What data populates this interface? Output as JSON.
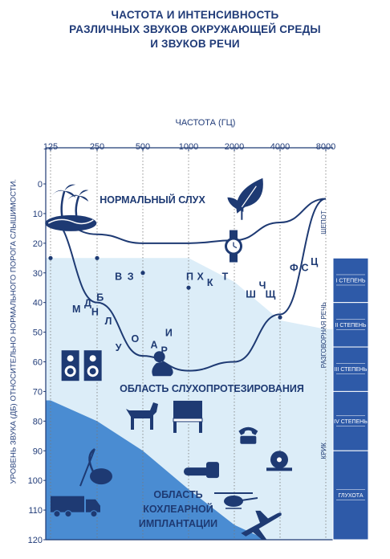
{
  "chart_data": {
    "type": "area",
    "title_lines": [
      "ЧАСТОТА И ИНТЕНСИВНОСТЬ",
      "РАЗЛИЧНЫХ ЗВУКОВ ОКРУЖАЮЩЕЙ СРЕДЫ",
      "И ЗВУКОВ РЕЧИ"
    ],
    "xlabel": "ЧАСТОТА (ГЦ)",
    "ylabel": "УРОВЕНЬ ЗВУКА (ДБ) ОТНОСИТЕЛЬНО НОРМАЛЬНОГО ПОРОГА СЛЫШИМОСТИ.",
    "x_ticks": [
      "125",
      "250",
      "500",
      "1000",
      "2000",
      "4000",
      "8000"
    ],
    "y_ticks": [
      0,
      10,
      20,
      30,
      40,
      50,
      60,
      70,
      80,
      90,
      100,
      110,
      120
    ],
    "ylim": [
      0,
      120
    ],
    "normal_hearing_threshold": [
      {
        "x": "125",
        "y": 25
      },
      {
        "x": "250",
        "y": 25
      },
      {
        "x": "500",
        "y": 25
      },
      {
        "x": "1000",
        "y": 25
      },
      {
        "x": "2000",
        "y": 33
      },
      {
        "x": "4000",
        "y": 46
      },
      {
        "x": "8000",
        "y": 49
      }
    ],
    "implant_boundary": [
      {
        "x": "125",
        "y": 73
      },
      {
        "x": "250",
        "y": 80
      },
      {
        "x": "500",
        "y": 90
      },
      {
        "x": "1000",
        "y": 103
      },
      {
        "x": "2000",
        "y": 115
      }
    ],
    "speech_banana_upper": [
      {
        "x": "125",
        "y": 12
      },
      {
        "x": "250",
        "y": 17
      },
      {
        "x": "500",
        "y": 20
      },
      {
        "x": "1000",
        "y": 20
      },
      {
        "x": "2000",
        "y": 19
      },
      {
        "x": "4000",
        "y": 13
      },
      {
        "x": "8000",
        "y": 5
      }
    ],
    "speech_banana_lower": [
      {
        "x": "8000",
        "y": 5
      },
      {
        "x": "4000",
        "y": 44
      },
      {
        "x": "2000",
        "y": 60
      },
      {
        "x": "1000",
        "y": 63
      },
      {
        "x": "500",
        "y": 58
      },
      {
        "x": "250",
        "y": 40
      },
      {
        "x": "125",
        "y": 12
      }
    ],
    "threshold_markers": [
      {
        "x": "125",
        "y": 25
      },
      {
        "x": "250",
        "y": 25
      },
      {
        "x": "500",
        "y": 30
      },
      {
        "x": "1000",
        "y": 35
      },
      {
        "x": "4000",
        "y": 45
      }
    ],
    "regions": [
      {
        "label": "НОРМАЛЬНЫЙ СЛУХ"
      },
      {
        "label": "ОБЛАСТЬ СЛУХОПРОТЕЗИРОВАНИЯ"
      },
      {
        "label_lines": [
          "ОБЛАСТЬ",
          "КОХЛЕАРНОЙ",
          "ИМПЛАНТАЦИИ"
        ]
      }
    ],
    "speech_sounds": [
      {
        "text": "В",
        "freq": 350,
        "db": 31
      },
      {
        "text": "З",
        "freq": 420,
        "db": 31
      },
      {
        "text": "М",
        "freq": 185,
        "db": 42
      },
      {
        "text": "Д",
        "freq": 220,
        "db": 40
      },
      {
        "text": "Б",
        "freq": 265,
        "db": 38
      },
      {
        "text": "Н",
        "freq": 245,
        "db": 43
      },
      {
        "text": "Л",
        "freq": 300,
        "db": 46
      },
      {
        "text": "У",
        "freq": 350,
        "db": 55
      },
      {
        "text": "О",
        "freq": 450,
        "db": 52
      },
      {
        "text": "А",
        "freq": 600,
        "db": 54
      },
      {
        "text": "Р",
        "freq": 700,
        "db": 56
      },
      {
        "text": "И",
        "freq": 750,
        "db": 50
      },
      {
        "text": "П",
        "freq": 1030,
        "db": 31
      },
      {
        "text": "Х",
        "freq": 1210,
        "db": 31
      },
      {
        "text": "К",
        "freq": 1400,
        "db": 33
      },
      {
        "text": "Т",
        "freq": 1760,
        "db": 31
      },
      {
        "text": "Ч",
        "freq": 3100,
        "db": 34
      },
      {
        "text": "Ш",
        "freq": 2600,
        "db": 37
      },
      {
        "text": "Щ",
        "freq": 3500,
        "db": 37
      },
      {
        "text": "Ф",
        "freq": 5000,
        "db": 28
      },
      {
        "text": "С",
        "freq": 5900,
        "db": 28
      },
      {
        "text": "Ц",
        "freq": 6800,
        "db": 26
      }
    ],
    "side_labels": [
      {
        "text": "ШЕПОТ",
        "db": 13
      },
      {
        "text": "РАЗГОВОРНАЯ РЕЧЬ",
        "db": 51
      },
      {
        "text": "КРИК",
        "db": 90
      }
    ],
    "hearing_loss_grades": [
      {
        "label": "I СТЕПЕНЬ",
        "from": 25,
        "to": 40
      },
      {
        "label": "II СТЕПЕНЬ",
        "from": 40,
        "to": 55
      },
      {
        "label": "III СТЕПЕНЬ",
        "from": 55,
        "to": 70
      },
      {
        "label": "IV СТЕПЕНЬ",
        "from": 70,
        "to": 90
      },
      {
        "label": "ГЛУХОТА",
        "from": 90,
        "to": 120
      }
    ],
    "icons": [
      {
        "name": "palm-island-icon",
        "freq": 170,
        "db": 10
      },
      {
        "name": "leaf-icon",
        "freq": 2500,
        "db": 4
      },
      {
        "name": "wristwatch-icon",
        "freq": 2000,
        "db": 21
      },
      {
        "name": "baby-icon",
        "freq": 700,
        "db": 61
      },
      {
        "name": "speakers-icon",
        "freq": 200,
        "db": 61
      },
      {
        "name": "dog-icon",
        "freq": 500,
        "db": 78
      },
      {
        "name": "piano-icon",
        "freq": 1000,
        "db": 78
      },
      {
        "name": "telephone-icon",
        "freq": 2500,
        "db": 85
      },
      {
        "name": "vacuum-cleaner-icon",
        "freq": 250,
        "db": 97
      },
      {
        "name": "chainsaw-icon",
        "freq": 1200,
        "db": 97
      },
      {
        "name": "circular-saw-icon",
        "freq": 4000,
        "db": 93
      },
      {
        "name": "truck-icon",
        "freq": 180,
        "db": 108
      },
      {
        "name": "helicopter-icon",
        "freq": 2000,
        "db": 107
      },
      {
        "name": "airplane-icon",
        "freq": 3000,
        "db": 114
      }
    ],
    "grid": true,
    "colors": {
      "text": "#1e3a73",
      "implant_area": "#4a8cd2",
      "fitting_area": "#dcedf8",
      "grade_bar": "#2e5aa8"
    }
  }
}
